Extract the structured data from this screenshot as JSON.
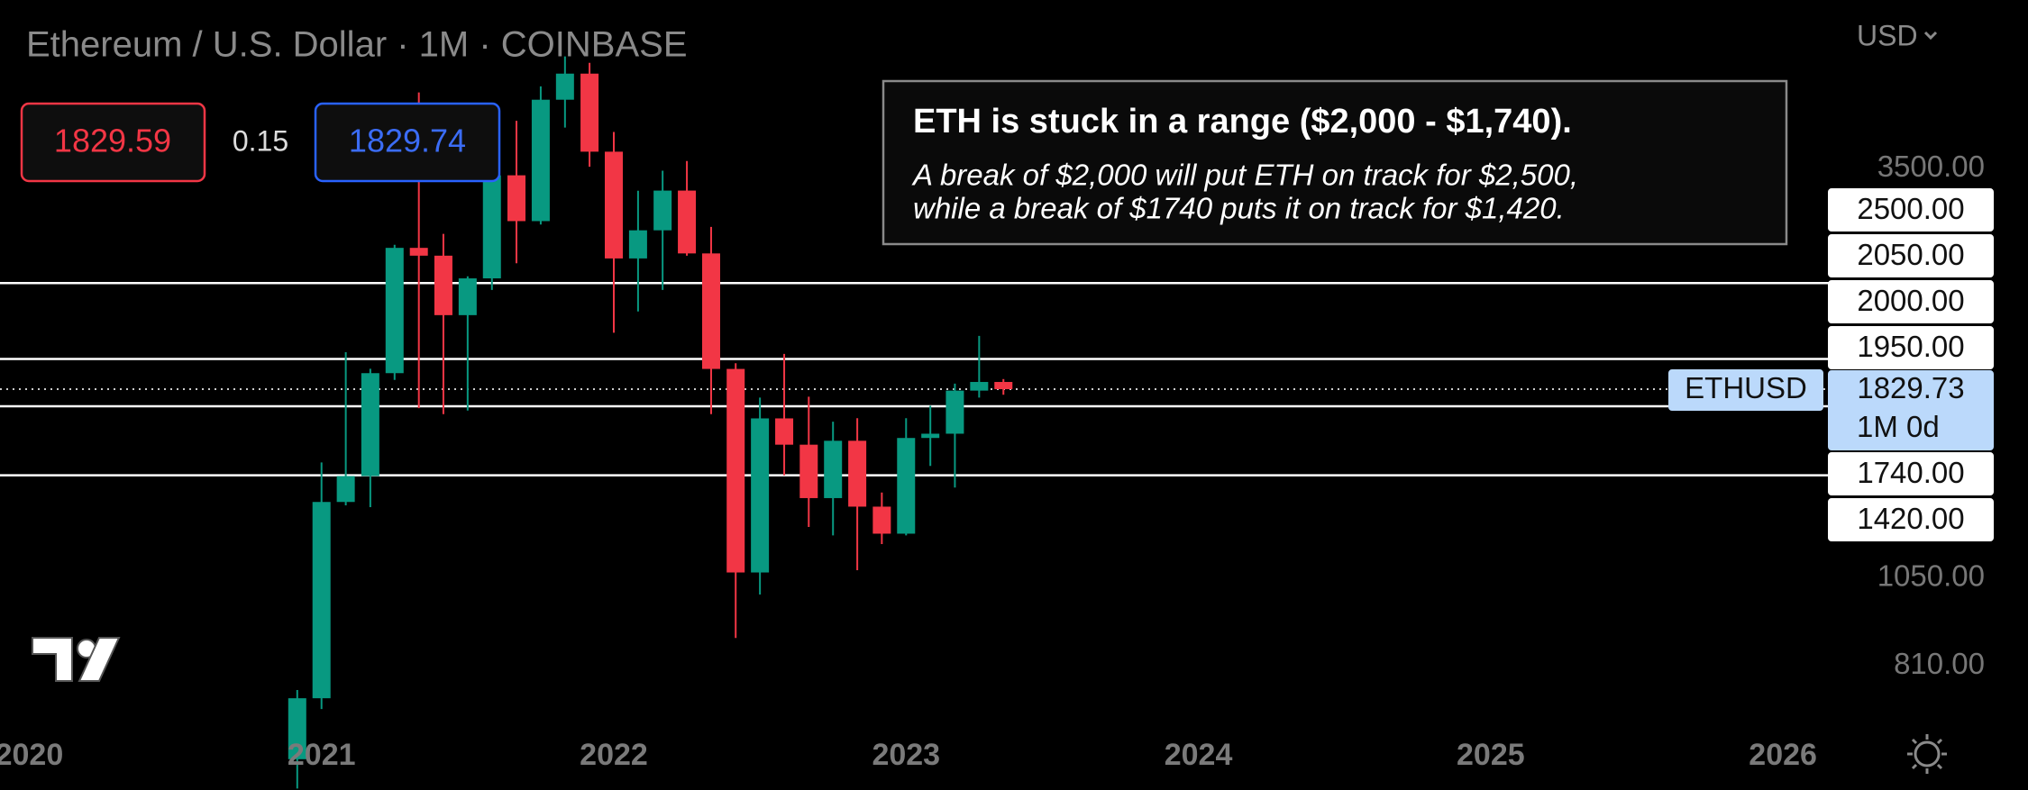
{
  "header": {
    "symbol": "Ethereum / U.S. Dollar · 1M · COINBASE",
    "bid": "1829.59",
    "spread": "0.15",
    "ask": "1829.74",
    "currency": "USD"
  },
  "annotation": {
    "title": "ETH is stuck in a range ($2,000 - $1,740).",
    "lines": [
      "A break of $2,000 will put ETH on track for $2,500,",
      "while a break of $1740 puts it on track for $1,420."
    ]
  },
  "chart_data": {
    "type": "candlestick",
    "x": [
      2020.917,
      2021.0,
      2021.083,
      2021.167,
      2021.25,
      2021.333,
      2021.417,
      2021.5,
      2021.583,
      2021.667,
      2021.75,
      2021.833,
      2021.917,
      2022.0,
      2022.083,
      2022.167,
      2022.25,
      2022.333,
      2022.417,
      2022.5,
      2022.583,
      2022.667,
      2022.75,
      2022.833,
      2022.917,
      2023.0,
      2023.083,
      2023.167,
      2023.25,
      2023.333
    ],
    "open": [
      616,
      737,
      1313,
      1417,
      1918,
      2773,
      2710,
      2275,
      2535,
      3433,
      3000,
      4288,
      4630,
      3680,
      2688,
      2920,
      3282,
      2728,
      1942,
      1067,
      1679,
      1554,
      1328,
      1572,
      1295,
      1196,
      1585,
      1605,
      1822,
      1869
    ],
    "high": [
      755,
      1475,
      2040,
      1943,
      2798,
      4380,
      2890,
      2550,
      3470,
      4030,
      4460,
      4870,
      4780,
      3900,
      3280,
      3480,
      3580,
      2950,
      1975,
      1785,
      2030,
      1790,
      1663,
      1680,
      1350,
      1680,
      1743,
      1860,
      2140,
      1885
    ],
    "low": [
      565,
      714,
      1300,
      1293,
      1880,
      1730,
      1700,
      1718,
      2450,
      2650,
      2970,
      3950,
      3520,
      2160,
      2300,
      2450,
      2710,
      1700,
      880,
      1000,
      1420,
      1220,
      1190,
      1074,
      1160,
      1190,
      1460,
      1370,
      1785,
      1800
    ],
    "close": [
      737,
      1313,
      1417,
      1918,
      2773,
      2710,
      2275,
      2535,
      3433,
      3000,
      4288,
      4630,
      3680,
      2688,
      2920,
      3282,
      2728,
      1942,
      1067,
      1679,
      1554,
      1328,
      1572,
      1295,
      1196,
      1585,
      1605,
      1822,
      1869,
      1829.73
    ],
    "up_color": "#089981",
    "down_color": "#f23645",
    "log_scale": true,
    "ylim": [
      690,
      5750
    ],
    "yticks": [
      {
        "value": 3500,
        "label": "3500.00"
      },
      {
        "value": 1050,
        "label": "1050.00"
      },
      {
        "value": 810,
        "label": "810.00"
      }
    ],
    "xlim": [
      2019.9,
      2026.16
    ],
    "xticks": [
      2020,
      2021,
      2022,
      2023,
      2024,
      2025,
      2026
    ],
    "levels": [
      2500,
      2000,
      1740,
      1420
    ],
    "price_labels": [
      {
        "value": 2500,
        "label": "2500.00"
      },
      {
        "value": 2050,
        "label": "2050.00"
      },
      {
        "value": 2000,
        "label": "2000.00"
      },
      {
        "value": 1950,
        "label": "1950.00"
      },
      {
        "value": 1740,
        "label": "1740.00"
      },
      {
        "value": 1420,
        "label": "1420.00"
      }
    ],
    "last_price": 1829.73,
    "symbol": "ETHUSD",
    "countdown": "1M 0d"
  }
}
